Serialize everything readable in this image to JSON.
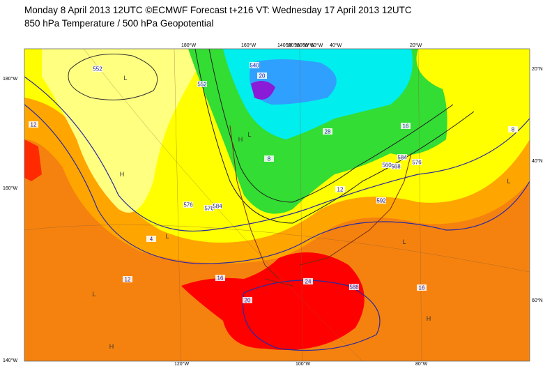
{
  "header": {
    "line1": "Monday 8 April 2013 12UTC ©ECMWF Forecast t+216 VT: Wednesday 17 April 2013 12UTC",
    "line2": "850 hPa Temperature / 500 hPa Geopotential"
  },
  "map": {
    "left_labels": [
      "180°W",
      "160°W",
      "140°W"
    ],
    "top_labels": [
      "180°W",
      "160°W",
      "140°W",
      "120°W",
      "100°W",
      "80°W",
      "60°W",
      "40°W",
      "20°W"
    ],
    "right_labels": [
      "20°N",
      "40°N",
      "60°N"
    ],
    "bottom_labels": [
      "120°W",
      "100°W",
      "80°W"
    ],
    "contour_labels": [
      "552",
      "576",
      "584",
      "576",
      "568",
      "592",
      "552",
      "588",
      "560",
      "576",
      "584",
      "540",
      "20",
      "12",
      "12",
      "16",
      "4",
      "8",
      "8",
      "12",
      "16",
      "20",
      "24",
      "28",
      "16"
    ],
    "pressure_marks": [
      "L",
      "L",
      "H",
      "L",
      "H",
      "L",
      "H",
      "H",
      "L",
      "L"
    ]
  }
}
